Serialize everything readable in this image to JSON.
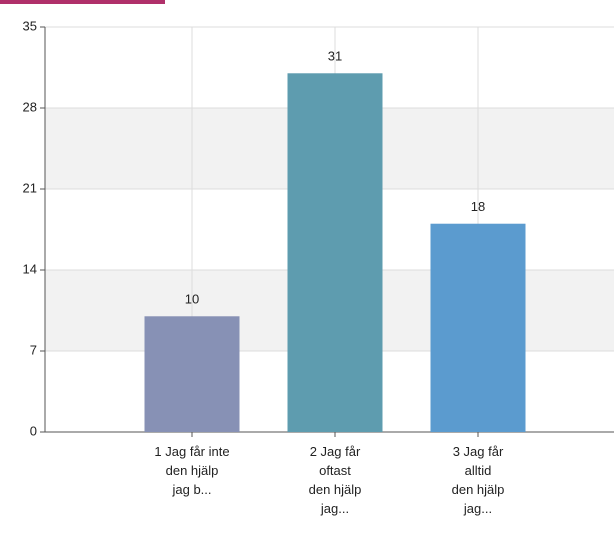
{
  "chart_data": {
    "type": "bar",
    "categories": [
      "1 Jag får inte\nden hjälp\njag b...",
      "2 Jag får\noftast\nden hjälp\njag...",
      "3 Jag får\nalltid\nden hjälp\njag..."
    ],
    "values": [
      10,
      31,
      18
    ],
    "colors": [
      "#8791b5",
      "#5e9caf",
      "#5b9bcf"
    ],
    "ylim": [
      0,
      35
    ],
    "yticks": [
      0,
      7,
      14,
      21,
      28,
      35
    ],
    "grid": true
  }
}
